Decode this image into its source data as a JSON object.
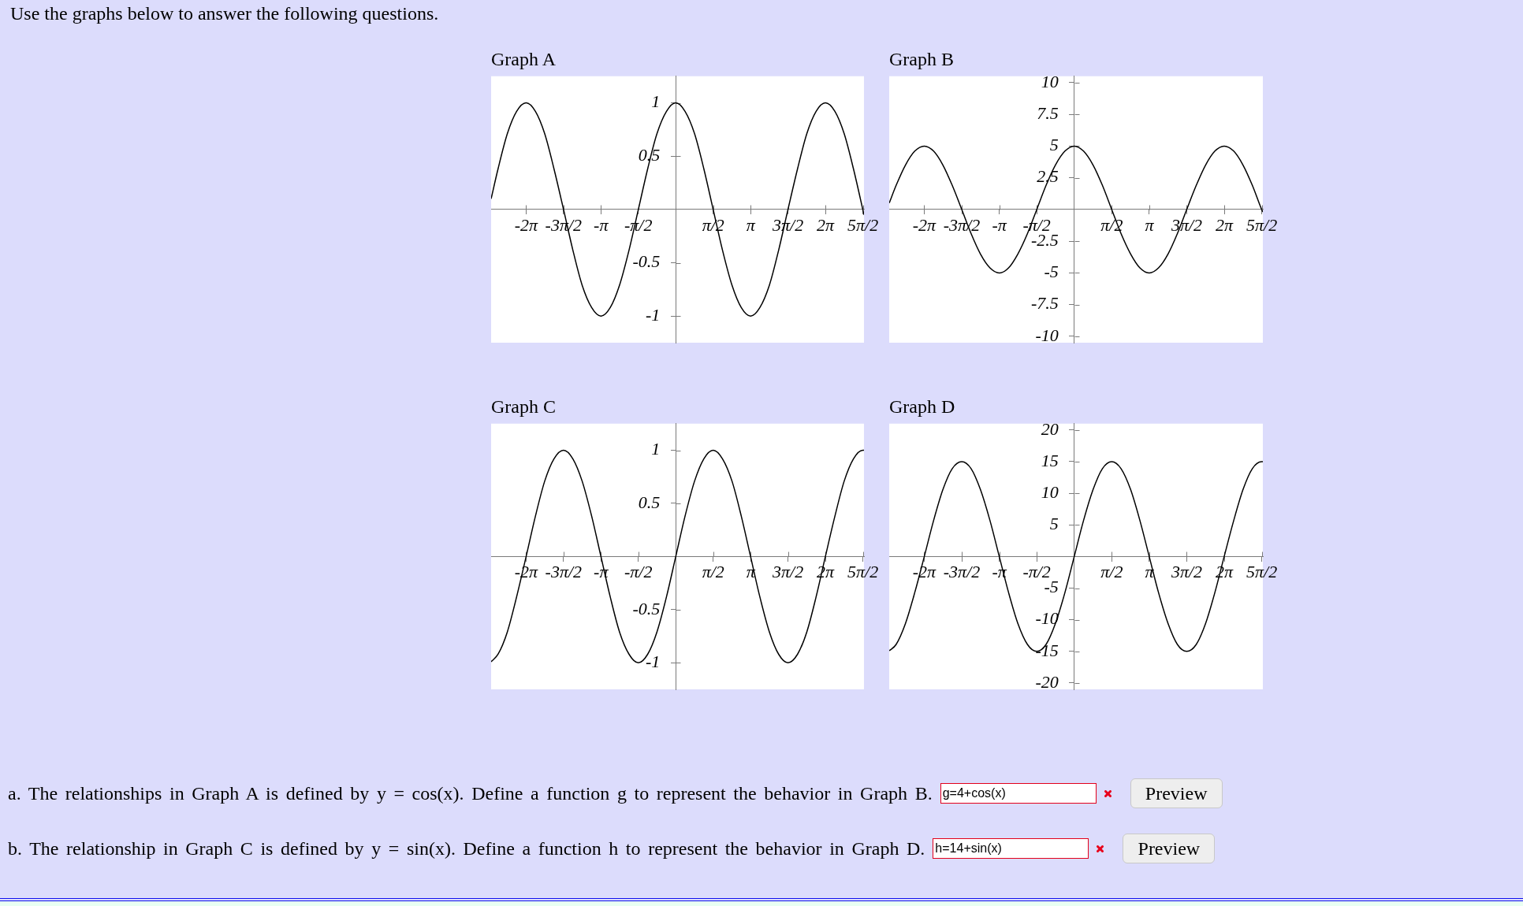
{
  "chart_data": [
    {
      "type": "other",
      "annotations": [
        "Use the graphs below to answer the following questions."
      ]
    },
    {
      "type": "line",
      "title": "Graph A",
      "color": "#000000",
      "x": [
        -7.75,
        -7.46,
        -7.07,
        -6.68,
        -6.28,
        -5.89,
        -5.5,
        -5.11,
        -4.71,
        -4.32,
        -3.93,
        -3.53,
        -3.14,
        -2.75,
        -2.36,
        -1.96,
        -1.57,
        -1.18,
        -0.79,
        -0.39,
        0,
        0.39,
        0.79,
        1.18,
        1.57,
        1.96,
        2.36,
        2.75,
        3.14,
        3.53,
        3.93,
        4.32,
        4.71,
        5.11,
        5.5,
        5.89,
        6.28,
        6.68,
        7.07,
        7.46,
        7.85,
        7.9
      ],
      "values": [
        0.1,
        0.38,
        0.71,
        0.92,
        1,
        0.92,
        0.71,
        0.38,
        0,
        -0.38,
        -0.71,
        -0.92,
        -1,
        -0.92,
        -0.71,
        -0.38,
        0,
        0.38,
        0.71,
        0.92,
        1,
        0.92,
        0.71,
        0.38,
        0,
        -0.38,
        -0.71,
        -0.92,
        -1,
        -0.92,
        -0.71,
        -0.38,
        0,
        0.38,
        0.71,
        0.92,
        1,
        0.92,
        0.71,
        0.38,
        0,
        -0.05
      ],
      "xlim": [
        -7.75,
        7.9
      ],
      "xticks": [
        {
          "value": -6.283,
          "label": "-2π"
        },
        {
          "value": -4.712,
          "label": "-3π/2"
        },
        {
          "value": -3.142,
          "label": "-π"
        },
        {
          "value": -1.571,
          "label": "-π/2"
        },
        {
          "value": 1.571,
          "label": "π/2"
        },
        {
          "value": 3.142,
          "label": "π"
        },
        {
          "value": 4.712,
          "label": "3π/2"
        },
        {
          "value": 6.283,
          "label": "2π"
        },
        {
          "value": 7.854,
          "label": "5π/2"
        }
      ],
      "ylim": [
        -1.25,
        1.25
      ],
      "yticks": [
        1,
        0.5,
        -0.5,
        -1
      ]
    },
    {
      "type": "line",
      "title": "Graph B",
      "color": "#000000",
      "x": [
        -7.75,
        -7.46,
        -7.07,
        -6.68,
        -6.28,
        -5.89,
        -5.5,
        -5.11,
        -4.71,
        -4.32,
        -3.93,
        -3.53,
        -3.14,
        -2.75,
        -2.36,
        -1.96,
        -1.57,
        -1.18,
        -0.79,
        -0.39,
        0,
        0.39,
        0.79,
        1.18,
        1.57,
        1.96,
        2.36,
        2.75,
        3.14,
        3.53,
        3.93,
        4.32,
        4.71,
        5.11,
        5.5,
        5.89,
        6.28,
        6.68,
        7.07,
        7.46,
        7.85,
        7.9
      ],
      "values": [
        0.5,
        1.9,
        3.5,
        4.6,
        5,
        4.6,
        3.5,
        1.9,
        0,
        -1.9,
        -3.5,
        -4.6,
        -5,
        -4.6,
        -3.5,
        -1.9,
        0,
        1.9,
        3.5,
        4.6,
        5,
        4.6,
        3.5,
        1.9,
        0,
        -1.9,
        -3.5,
        -4.6,
        -5,
        -4.6,
        -3.5,
        -1.9,
        0,
        1.9,
        3.5,
        4.6,
        5,
        4.6,
        3.5,
        1.9,
        0,
        -0.2
      ],
      "xlim": [
        -7.75,
        7.9
      ],
      "xticks": [
        {
          "value": -6.283,
          "label": "-2π"
        },
        {
          "value": -4.712,
          "label": "-3π/2"
        },
        {
          "value": -3.142,
          "label": "-π"
        },
        {
          "value": -1.571,
          "label": "-π/2"
        },
        {
          "value": 1.571,
          "label": "π/2"
        },
        {
          "value": 3.142,
          "label": "π"
        },
        {
          "value": 4.712,
          "label": "3π/2"
        },
        {
          "value": 6.283,
          "label": "2π"
        },
        {
          "value": 7.854,
          "label": "5π/2"
        }
      ],
      "ylim": [
        -10.5,
        10.5
      ],
      "yticks": [
        10,
        7.5,
        5,
        2.5,
        -2.5,
        -5,
        -7.5,
        -10
      ]
    },
    {
      "type": "line",
      "title": "Graph C",
      "color": "#000000",
      "x": [
        -7.75,
        -7.46,
        -7.07,
        -6.68,
        -6.28,
        -5.89,
        -5.5,
        -5.11,
        -4.71,
        -4.32,
        -3.93,
        -3.53,
        -3.14,
        -2.75,
        -2.36,
        -1.96,
        -1.57,
        -1.18,
        -0.79,
        -0.39,
        0,
        0.39,
        0.79,
        1.18,
        1.57,
        1.96,
        2.36,
        2.75,
        3.14,
        3.53,
        3.93,
        4.32,
        4.71,
        5.11,
        5.5,
        5.89,
        6.28,
        6.68,
        7.07,
        7.46,
        7.85,
        7.9
      ],
      "values": [
        -0.99,
        -0.92,
        -0.71,
        -0.38,
        0,
        0.38,
        0.71,
        0.92,
        1,
        0.92,
        0.71,
        0.38,
        0,
        -0.38,
        -0.71,
        -0.92,
        -1,
        -0.92,
        -0.71,
        -0.38,
        0,
        0.38,
        0.71,
        0.92,
        1,
        0.92,
        0.71,
        0.38,
        0,
        -0.38,
        -0.71,
        -0.92,
        -1,
        -0.92,
        -0.71,
        -0.38,
        0,
        0.38,
        0.71,
        0.92,
        1,
        1
      ],
      "xlim": [
        -7.75,
        7.9
      ],
      "xticks": [
        {
          "value": -6.283,
          "label": "-2π"
        },
        {
          "value": -4.712,
          "label": "-3π/2"
        },
        {
          "value": -3.142,
          "label": "-π"
        },
        {
          "value": -1.571,
          "label": "-π/2"
        },
        {
          "value": 1.571,
          "label": "π/2"
        },
        {
          "value": 3.142,
          "label": "π"
        },
        {
          "value": 4.712,
          "label": "3π/2"
        },
        {
          "value": 6.283,
          "label": "2π"
        },
        {
          "value": 7.854,
          "label": "5π/2"
        }
      ],
      "ylim": [
        -1.25,
        1.25
      ],
      "yticks": [
        1,
        0.5,
        -0.5,
        -1
      ]
    },
    {
      "type": "line",
      "title": "Graph D",
      "color": "#000000",
      "x": [
        -7.75,
        -7.46,
        -7.07,
        -6.68,
        -6.28,
        -5.89,
        -5.5,
        -5.11,
        -4.71,
        -4.32,
        -3.93,
        -3.53,
        -3.14,
        -2.75,
        -2.36,
        -1.96,
        -1.57,
        -1.18,
        -0.79,
        -0.39,
        0,
        0.39,
        0.79,
        1.18,
        1.57,
        1.96,
        2.36,
        2.75,
        3.14,
        3.53,
        3.93,
        4.32,
        4.71,
        5.11,
        5.5,
        5.89,
        6.28,
        6.68,
        7.07,
        7.46,
        7.85,
        7.9
      ],
      "values": [
        -14.9,
        -13.9,
        -10.6,
        -5.7,
        0,
        5.7,
        10.6,
        13.9,
        15,
        13.9,
        10.6,
        5.7,
        0,
        -5.7,
        -10.6,
        -13.9,
        -15,
        -13.9,
        -10.6,
        -5.7,
        0,
        5.7,
        10.6,
        13.9,
        15,
        13.9,
        10.6,
        5.7,
        0,
        -5.7,
        -10.6,
        -13.9,
        -15,
        -13.9,
        -10.6,
        -5.7,
        0,
        5.7,
        10.6,
        13.9,
        15,
        15
      ],
      "xlim": [
        -7.75,
        7.9
      ],
      "xticks": [
        {
          "value": -6.283,
          "label": "-2π"
        },
        {
          "value": -4.712,
          "label": "-3π/2"
        },
        {
          "value": -3.142,
          "label": "-π"
        },
        {
          "value": -1.571,
          "label": "-π/2"
        },
        {
          "value": 1.571,
          "label": "π/2"
        },
        {
          "value": 3.142,
          "label": "π"
        },
        {
          "value": 4.712,
          "label": "3π/2"
        },
        {
          "value": 6.283,
          "label": "2π"
        },
        {
          "value": 7.854,
          "label": "5π/2"
        }
      ],
      "ylim": [
        -21,
        21
      ],
      "yticks": [
        20,
        15,
        10,
        5,
        -5,
        -10,
        -15,
        -20
      ]
    },
    {
      "type": "other",
      "annotations": [
        "a. The relationships in Graph A is defined by y = cos(x). Define a function g to represent the behavior in Graph B.",
        "g=4+cos(x)",
        "Preview",
        "b. The relationship in Graph C is defined by y = sin(x). Define a function h to represent the behavior in Graph D.",
        "h=14+sin(x)",
        "Preview"
      ]
    }
  ]
}
